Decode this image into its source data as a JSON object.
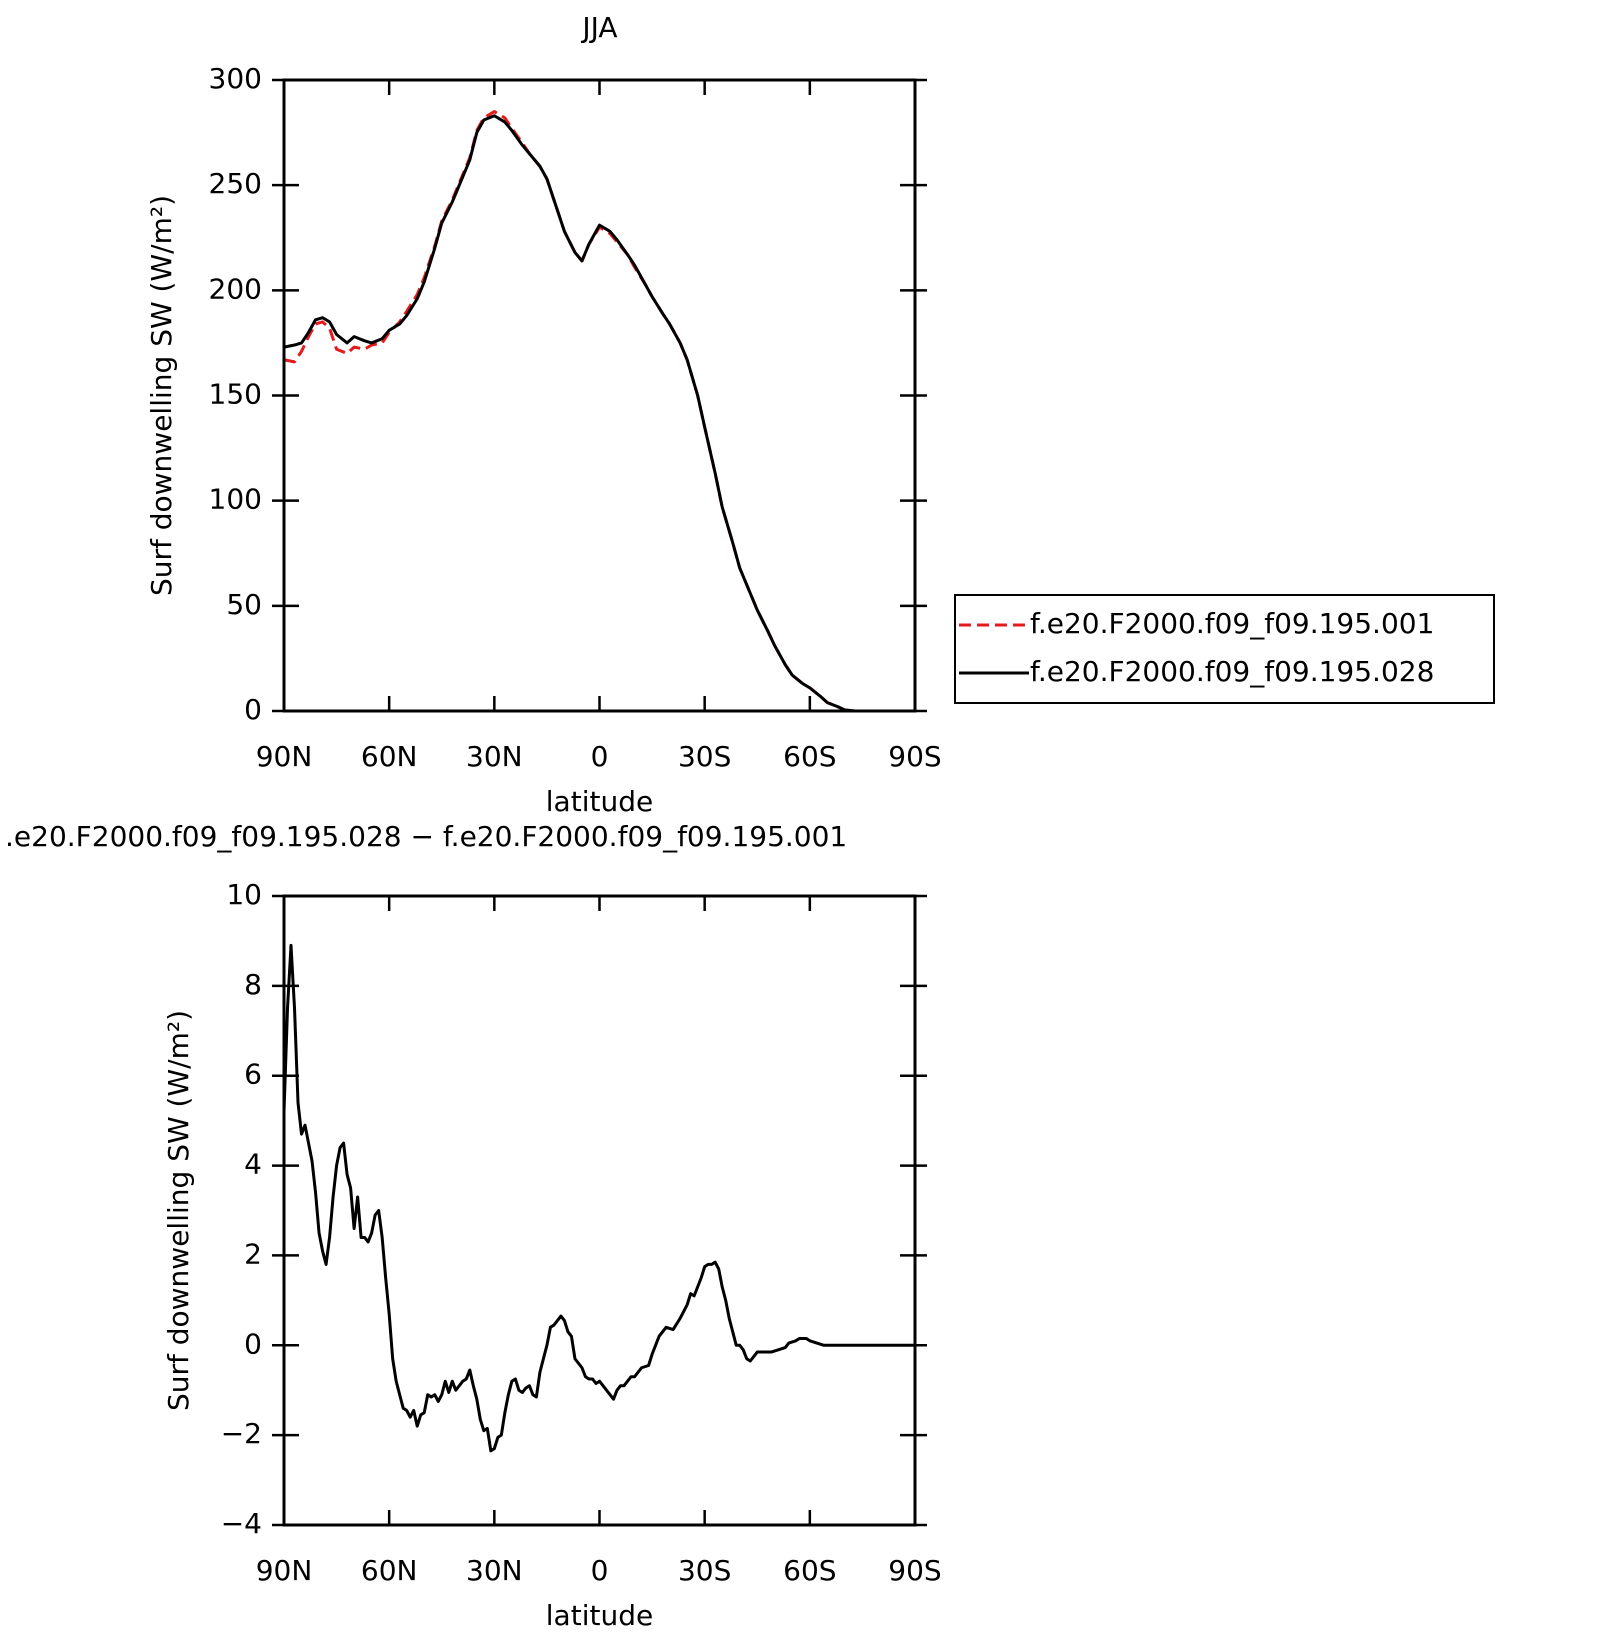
{
  "chart_data": [
    {
      "type": "line",
      "title": "JJA",
      "x_label": "latitude",
      "y_label": "Surf downwelling SW (W/m²)",
      "x": [
        90,
        87,
        85,
        83,
        81,
        79,
        77,
        75,
        72,
        70,
        67,
        65,
        62,
        60,
        57,
        55,
        52,
        50,
        47,
        45,
        42,
        40,
        37,
        35,
        33,
        30,
        27,
        25,
        22,
        20,
        17,
        15,
        12,
        10,
        7,
        5,
        3,
        0,
        -3,
        -5,
        -8,
        -10,
        -13,
        -15,
        -18,
        -20,
        -23,
        -25,
        -28,
        -30,
        -33,
        -35,
        -38,
        -40,
        -43,
        -45,
        -48,
        -50,
        -53,
        -55,
        -58,
        -60,
        -63,
        -65,
        -68,
        -70,
        -73,
        -75,
        -80,
        -85,
        -90
      ],
      "series": [
        {
          "name": "f.e20.F2000.f09_f09.195.001",
          "color": "#e41a1c",
          "line_style": "dashed",
          "values": [
            167,
            166,
            171,
            178,
            184,
            185,
            182,
            172,
            170,
            173,
            172,
            174,
            175,
            180,
            185,
            190,
            198,
            206,
            221,
            233,
            243,
            251,
            263,
            276,
            282,
            285,
            282,
            277,
            270,
            265,
            259,
            253,
            238,
            228,
            218,
            214,
            222,
            230,
            227,
            223,
            217,
            211,
            203,
            197,
            189,
            184,
            175,
            167,
            150,
            135,
            113,
            97,
            80,
            68,
            56,
            48,
            38,
            31,
            22,
            17,
            13,
            11,
            7,
            4,
            2,
            0.5,
            0,
            0,
            0,
            0,
            0
          ]
        },
        {
          "name": "f.e20.F2000.f09_f09.195.028",
          "color": "#000000",
          "line_style": "solid",
          "values": [
            173,
            174,
            175,
            180,
            186,
            187,
            185,
            179,
            175,
            178,
            176,
            175,
            177,
            181,
            184,
            188,
            196,
            204,
            220,
            232,
            242,
            250,
            262,
            275,
            281,
            283,
            280,
            276,
            269,
            265,
            259,
            253,
            238,
            228,
            218,
            214,
            222,
            231,
            228,
            224,
            217,
            212,
            203,
            197,
            189,
            184,
            175,
            167,
            150,
            135,
            113,
            97,
            80,
            68,
            56,
            48,
            38,
            31,
            22,
            17,
            13,
            11,
            7,
            4,
            2,
            0.5,
            0,
            0,
            0,
            0,
            0
          ]
        }
      ],
      "xlim": [
        90,
        -90
      ],
      "xticks": [
        {
          "value": 90,
          "label": "90N"
        },
        {
          "value": 60,
          "label": "60N"
        },
        {
          "value": 30,
          "label": "30N"
        },
        0,
        {
          "value": -30,
          "label": "30S"
        },
        {
          "value": -60,
          "label": "60S"
        },
        {
          "value": -90,
          "label": "90S"
        }
      ],
      "ylim": [
        0,
        300
      ],
      "yticks": [
        0,
        50,
        100,
        150,
        200,
        250,
        300
      ],
      "legend": "right",
      "grid": false
    },
    {
      "type": "line",
      "title": ".e20.F2000.f09_f09.195.028 − f.e20.F2000.f09_f09.195.001",
      "x_label": "latitude",
      "y_label": "Surf downwelling SW (W/m²)",
      "x": [
        90,
        89,
        88,
        87,
        86,
        85,
        84,
        83,
        82,
        81,
        80,
        79,
        78,
        77,
        76,
        75,
        74,
        73,
        72,
        71,
        70,
        69,
        68,
        67,
        66,
        65,
        64,
        63,
        62,
        61,
        60,
        59,
        58,
        57,
        56,
        55,
        54,
        53,
        52,
        51,
        50,
        49,
        48,
        47,
        46,
        45,
        44,
        43,
        42,
        41,
        40,
        39,
        38,
        37,
        36,
        35,
        34,
        33,
        32,
        31,
        30,
        29,
        28,
        27,
        26,
        25,
        24,
        23,
        22,
        21,
        20,
        19,
        18,
        17,
        16,
        15,
        14,
        13,
        12,
        11,
        10,
        9,
        8,
        7,
        6,
        5,
        4,
        3,
        2,
        1,
        0,
        -1,
        -2,
        -3,
        -4,
        -5,
        -6,
        -7,
        -8,
        -9,
        -10,
        -12,
        -14,
        -15,
        -17,
        -19,
        -21,
        -23,
        -25,
        -26,
        -27,
        -29,
        -30,
        -31,
        -32,
        -33,
        -34,
        -35,
        -36,
        -37,
        -38,
        -39,
        -40,
        -41,
        -42,
        -43,
        -44,
        -45,
        -47,
        -49,
        -51,
        -53,
        -54,
        -56,
        -57,
        -59,
        -60,
        -62,
        -64,
        -70,
        -90
      ],
      "series": [
        {
          "color": "#000000",
          "line_style": "solid",
          "values": [
            5.2,
            7.5,
            8.9,
            7.5,
            5.4,
            4.7,
            4.9,
            4.5,
            4.1,
            3.4,
            2.5,
            2.1,
            1.8,
            2.4,
            3.3,
            4.0,
            4.4,
            4.5,
            3.8,
            3.5,
            2.6,
            3.3,
            2.4,
            2.4,
            2.3,
            2.5,
            2.9,
            3.0,
            2.4,
            1.5,
            0.7,
            -0.3,
            -0.8,
            -1.1,
            -1.4,
            -1.45,
            -1.6,
            -1.45,
            -1.8,
            -1.55,
            -1.5,
            -1.1,
            -1.15,
            -1.1,
            -1.25,
            -1.1,
            -0.8,
            -1.05,
            -0.8,
            -1.0,
            -0.9,
            -0.8,
            -0.75,
            -0.55,
            -0.9,
            -1.2,
            -1.65,
            -1.9,
            -1.85,
            -2.35,
            -2.3,
            -2.05,
            -2.0,
            -1.5,
            -1.1,
            -0.8,
            -0.75,
            -1.0,
            -1.05,
            -0.95,
            -0.9,
            -1.1,
            -1.15,
            -0.6,
            -0.3,
            0,
            0.4,
            0.45,
            0.55,
            0.65,
            0.55,
            0.3,
            0.2,
            -0.3,
            -0.4,
            -0.5,
            -0.7,
            -0.75,
            -0.75,
            -0.85,
            -0.8,
            -0.9,
            -1.0,
            -1.1,
            -1.2,
            -1.0,
            -0.9,
            -0.9,
            -0.8,
            -0.7,
            -0.7,
            -0.5,
            -0.45,
            -0.2,
            0.2,
            0.4,
            0.35,
            0.6,
            0.9,
            1.15,
            1.1,
            1.5,
            1.75,
            1.8,
            1.8,
            1.85,
            1.7,
            1.3,
            1.0,
            0.6,
            0.3,
            0,
            0,
            -0.1,
            -0.3,
            -0.35,
            -0.25,
            -0.15,
            -0.15,
            -0.15,
            -0.1,
            -0.05,
            0.05,
            0.1,
            0.15,
            0.15,
            0.1,
            0.05,
            0,
            0,
            0
          ]
        }
      ],
      "xlim": [
        90,
        -90
      ],
      "xticks": [
        {
          "value": 90,
          "label": "90N"
        },
        {
          "value": 60,
          "label": "60N"
        },
        {
          "value": 30,
          "label": "30N"
        },
        0,
        {
          "value": -30,
          "label": "30S"
        },
        {
          "value": -60,
          "label": "60S"
        },
        {
          "value": -90,
          "label": "90S"
        }
      ],
      "ylim": [
        -4,
        10
      ],
      "yticks": [
        {
          "value": -4,
          "label": "−4"
        },
        {
          "value": -2,
          "label": "−2"
        },
        0,
        2,
        4,
        6,
        8,
        10
      ],
      "grid": false
    }
  ]
}
